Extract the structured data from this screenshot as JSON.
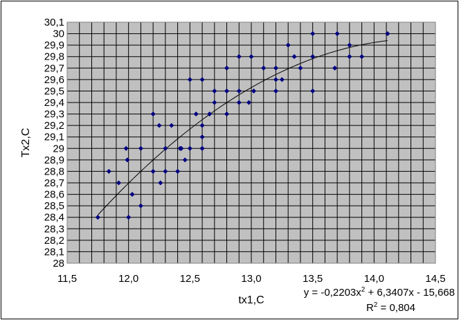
{
  "chart_data": {
    "type": "scatter",
    "xlabel": "tx1,C",
    "ylabel": "Tx2,C",
    "xlim": [
      11.5,
      14.5
    ],
    "ylim": [
      28,
      30.1
    ],
    "x_tick_labels": [
      "11,5",
      "12,0",
      "12,5",
      "13,0",
      "13,5",
      "14,0",
      "14,5"
    ],
    "y_tick_labels": [
      "28",
      "28,1",
      "28,2",
      "28,3",
      "28,4",
      "28,5",
      "28,6",
      "28,7",
      "28,8",
      "28,9",
      "29",
      "29,1",
      "29,2",
      "29,3",
      "29,4",
      "29,5",
      "29,6",
      "29,7",
      "29,8",
      "29,9",
      "30",
      "30,1"
    ],
    "grid": true,
    "legend": "none",
    "marker_color": "#000080",
    "plot_background": "#c0c0c0",
    "series": [
      {
        "x": [
          11.75,
          11.84,
          11.92,
          11.98,
          11.99,
          12.0,
          12.03,
          12.1,
          12.1,
          12.2,
          12.2,
          12.25,
          12.26,
          12.3,
          12.3,
          12.35,
          12.4,
          12.42,
          12.43,
          12.46,
          12.5,
          12.5,
          12.55,
          12.6,
          12.6,
          12.6,
          12.6,
          12.6,
          12.66,
          12.7,
          12.7,
          12.8,
          12.8,
          12.8,
          12.9,
          12.9,
          12.9,
          12.98,
          13.0,
          13.02,
          13.1,
          13.2,
          13.2,
          13.2,
          13.25,
          13.3,
          13.35,
          13.4,
          13.5,
          13.5,
          13.5,
          13.68,
          13.7,
          13.8,
          13.8,
          13.9,
          14.11
        ],
        "y": [
          28.4,
          28.8,
          28.7,
          29.0,
          28.9,
          28.4,
          28.6,
          29.0,
          28.5,
          29.3,
          28.8,
          29.2,
          28.7,
          29.0,
          28.8,
          29.2,
          28.8,
          29.0,
          29.0,
          28.9,
          29.6,
          29.0,
          29.3,
          29.6,
          29.2,
          29.1,
          29.0,
          29.0,
          29.3,
          29.5,
          29.4,
          29.7,
          29.5,
          29.3,
          29.8,
          29.5,
          29.4,
          29.4,
          29.8,
          29.5,
          29.7,
          29.7,
          29.6,
          29.5,
          29.6,
          29.9,
          29.8,
          29.7,
          30.0,
          29.8,
          29.5,
          29.7,
          30.0,
          29.9,
          29.8,
          29.8,
          30.0
        ]
      }
    ],
    "trendline": {
      "type": "polynomial",
      "coefficients": [
        -0.2203,
        6.3407,
        -15.668
      ],
      "x_range": [
        11.75,
        14.11
      ],
      "equation_text": {
        "y_prefix": "y = ",
        "coef_a": "-0,2203x",
        "exp_a": "2",
        "rest": " + 6,3407x - 15,668"
      },
      "r2_text": {
        "label": "R",
        "exp": "2",
        "value": " = 0,804"
      }
    }
  }
}
